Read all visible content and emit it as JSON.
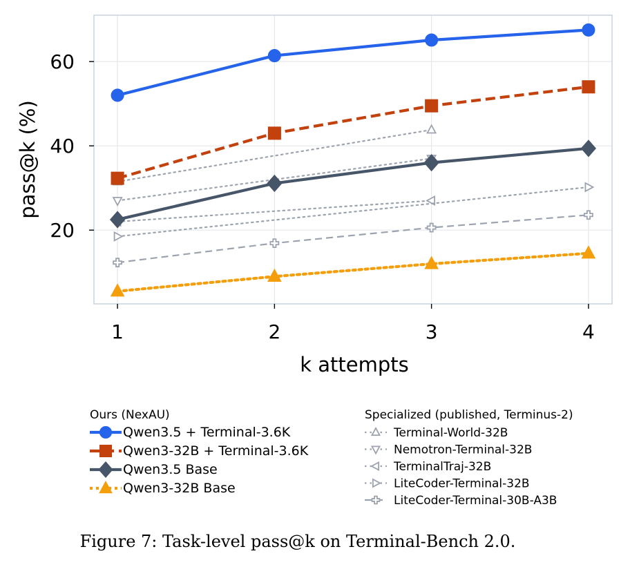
{
  "caption": "Figure 7: Task-level pass@k on Terminal-Bench 2.0.",
  "chart_data": {
    "type": "line",
    "xlabel": "k attempts",
    "ylabel": "pass@k (%)",
    "x": [
      1,
      2,
      3,
      4
    ],
    "xticks": [
      "1",
      "2",
      "3",
      "4"
    ],
    "yticks": [
      "20",
      "40",
      "60"
    ],
    "xlim": [
      0.85,
      4.15
    ],
    "ylim": [
      2.5,
      71
    ],
    "grid": true,
    "legend_groups": [
      {
        "title": "Ours (NexAU)",
        "entries": [
          "Qwen3.5 + Terminal-3.6K",
          "Qwen3-32B + Terminal-3.6K",
          "Qwen3.5 Base",
          "Qwen3-32B Base"
        ]
      },
      {
        "title": "Specialized (published, Terminus-2)",
        "entries": [
          "Terminal-World-32B",
          "Nemotron-Terminal-32B",
          "TerminalTraj-32B",
          "LiteCoder-Terminal-32B",
          "LiteCoder-Terminal-30B-A3B"
        ]
      }
    ],
    "series": [
      {
        "name": "Qwen3.5 + Terminal-3.6K",
        "x": [
          1,
          2,
          3,
          4
        ],
        "values": [
          52.0,
          61.4,
          65.1,
          67.5
        ],
        "color": "#2563eb",
        "marker": "circle",
        "linestyle": "solid"
      },
      {
        "name": "Qwen3-32B + Terminal-3.6K",
        "x": [
          1,
          2,
          3,
          4
        ],
        "values": [
          32.3,
          43.0,
          49.5,
          54.0
        ],
        "color": "#c2410c",
        "marker": "square",
        "linestyle": "dashed"
      },
      {
        "name": "Qwen3.5 Base",
        "x": [
          1,
          2,
          3,
          4
        ],
        "values": [
          22.5,
          31.1,
          36.0,
          39.4
        ],
        "color": "#475569",
        "marker": "diamond",
        "linestyle": "solid"
      },
      {
        "name": "Qwen3-32B Base",
        "x": [
          1,
          2,
          3,
          4
        ],
        "values": [
          5.5,
          9.0,
          12.0,
          14.5
        ],
        "color": "#f59e0b",
        "marker": "triangle-up",
        "linestyle": "dotted"
      },
      {
        "name": "Terminal-World-32B",
        "x": [
          1,
          3
        ],
        "values": [
          31.5,
          43.8
        ],
        "color": "#9ca3af",
        "marker": "triangle-up-open",
        "linestyle": "dotted"
      },
      {
        "name": "Nemotron-Terminal-32B",
        "x": [
          1,
          3
        ],
        "values": [
          27.0,
          37.0
        ],
        "color": "#9ca3af",
        "marker": "triangle-down-open",
        "linestyle": "dotted"
      },
      {
        "name": "TerminalTraj-32B",
        "x": [
          1,
          3
        ],
        "values": [
          22.0,
          27.0
        ],
        "color": "#9ca3af",
        "marker": "triangle-left-open",
        "linestyle": "dotted"
      },
      {
        "name": "LiteCoder-Terminal-32B",
        "x": [
          1,
          4
        ],
        "values": [
          18.5,
          30.2
        ],
        "color": "#9ca3af",
        "marker": "triangle-right-open",
        "linestyle": "dotted"
      },
      {
        "name": "LiteCoder-Terminal-30B-A3B",
        "x": [
          1,
          2,
          3,
          4
        ],
        "values": [
          12.3,
          16.9,
          20.6,
          23.6
        ],
        "color": "#9ca3af",
        "marker": "plus-open",
        "linestyle": "dashed"
      }
    ]
  }
}
